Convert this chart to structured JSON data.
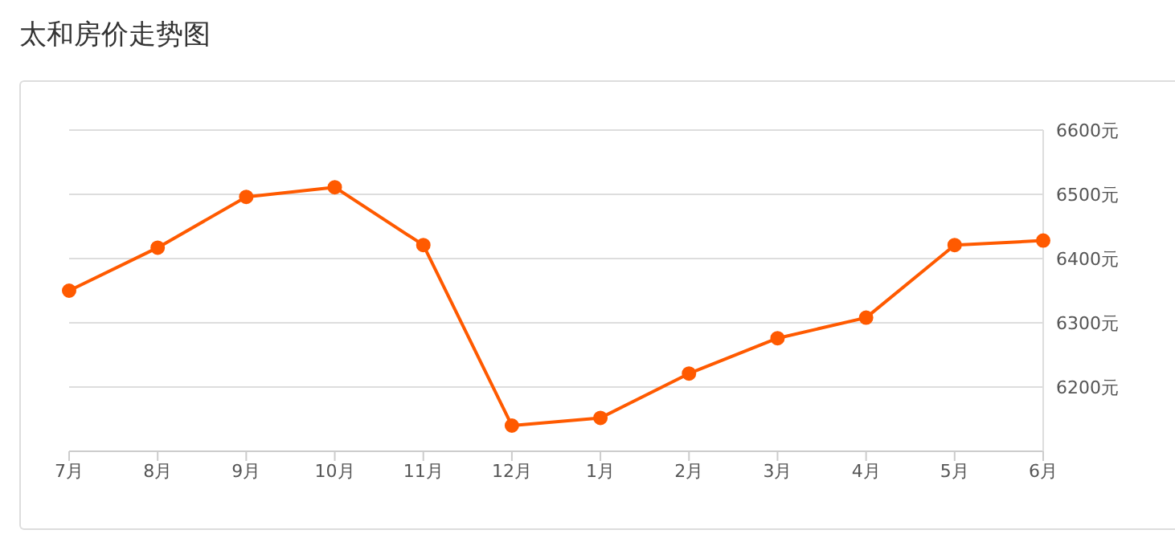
{
  "chart_data": {
    "type": "line",
    "title": "太和房价走势图",
    "categories": [
      "7月",
      "8月",
      "9月",
      "10月",
      "11月",
      "12月",
      "1月",
      "2月",
      "3月",
      "4月",
      "5月",
      "6月"
    ],
    "series": [
      {
        "color": "#ff5a00",
        "values": [
          6350,
          6417,
          6496,
          6511,
          6421,
          6140,
          6152,
          6221,
          6276,
          6308,
          6421,
          6428
        ]
      }
    ],
    "ylim": [
      6100,
      6600
    ],
    "yticks": [
      {
        "value": 6200,
        "label": "6200元"
      },
      {
        "value": 6300,
        "label": "6300元"
      },
      {
        "value": 6400,
        "label": "6400元"
      },
      {
        "value": 6500,
        "label": "6500元"
      },
      {
        "value": 6600,
        "label": "6600元"
      }
    ],
    "grid": "y",
    "legend": false,
    "marker": "circle",
    "line_style": "solid"
  }
}
